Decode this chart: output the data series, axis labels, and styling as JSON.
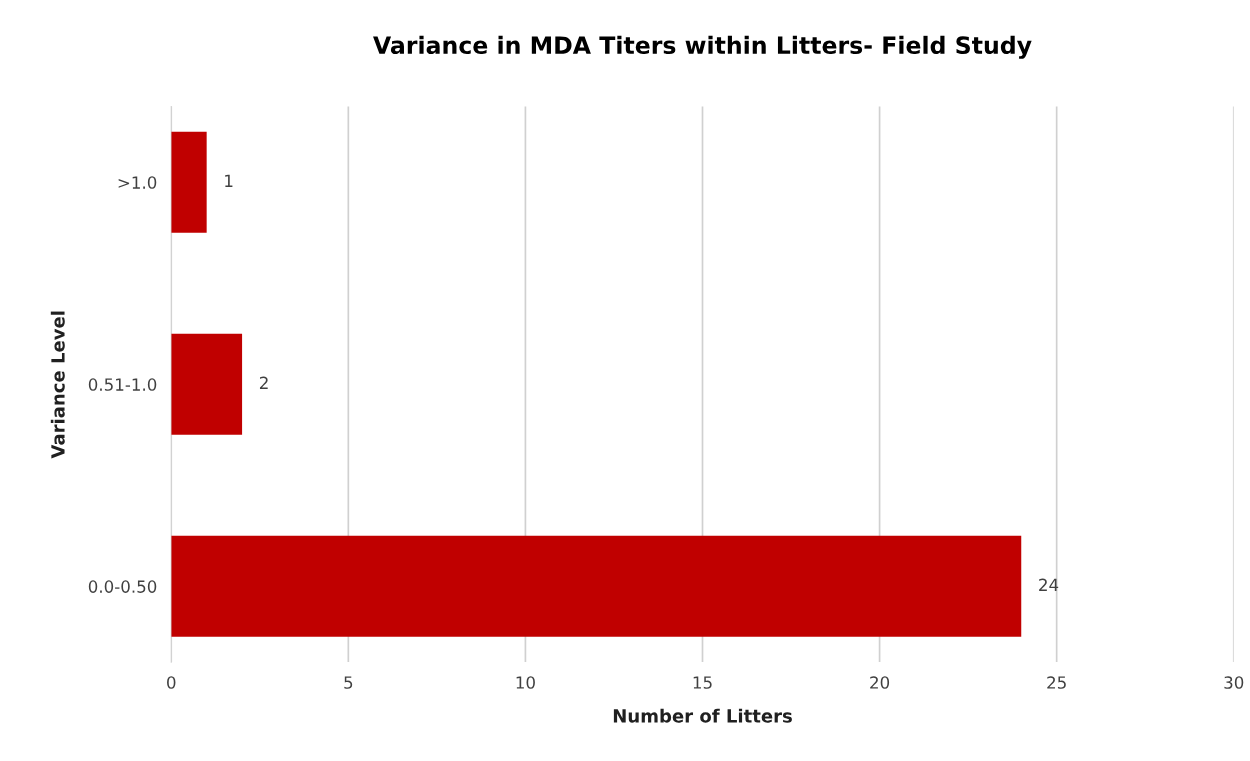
{
  "chart_data": {
    "type": "bar",
    "orientation": "horizontal",
    "title": "Variance in MDA Titers within Litters- Field Study",
    "xlabel": "Number of Litters",
    "ylabel": "Variance Level",
    "categories": [
      ">1.0",
      "0.51-1.0",
      "0.0-0.50"
    ],
    "series": [
      {
        "color": "#c00000",
        "values": [
          1,
          2,
          24
        ]
      }
    ],
    "xlim": [
      0,
      30
    ],
    "xticks": [
      0,
      5,
      10,
      15,
      20,
      25,
      30
    ],
    "grid": "x",
    "data_labels": true
  }
}
